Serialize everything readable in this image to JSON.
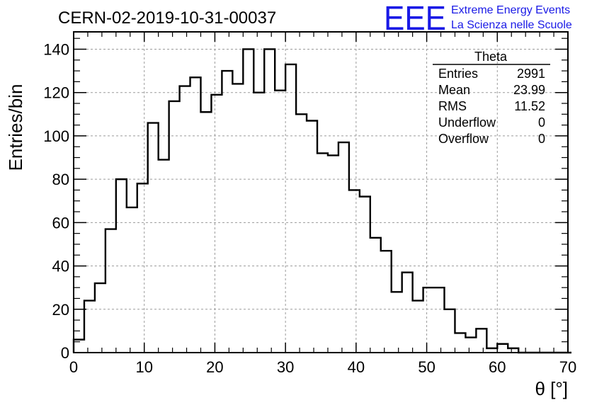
{
  "chart_data": {
    "type": "bar",
    "title": "CERN-02-2019-10-31-00037",
    "xlabel": "θ [°]",
    "ylabel": "Entries/bin",
    "xlim": [
      0,
      70
    ],
    "ylim": [
      0,
      148
    ],
    "grid": true,
    "bin_width": 1.5,
    "bin_start": 0,
    "x_ticks": [
      0,
      10,
      20,
      30,
      40,
      50,
      60,
      70
    ],
    "y_ticks": [
      0,
      20,
      40,
      60,
      80,
      100,
      120,
      140
    ],
    "values": [
      6,
      24,
      32,
      57,
      80,
      67,
      78,
      106,
      89,
      116,
      123,
      127,
      111,
      119,
      130,
      124,
      140,
      120,
      140,
      121,
      133,
      110,
      107,
      92,
      91,
      97,
      75,
      72,
      53,
      47,
      28,
      37,
      24,
      30,
      30,
      20,
      9,
      7,
      11,
      2,
      4,
      2,
      0,
      0,
      0,
      0,
      0
    ],
    "stats": {
      "name": "Theta",
      "rows": [
        {
          "label": "Entries",
          "value": "2991"
        },
        {
          "label": "Mean",
          "value": "23.99"
        },
        {
          "label": "RMS",
          "value": "11.52"
        },
        {
          "label": "Underflow",
          "value": "0"
        },
        {
          "label": "Overflow",
          "value": "0"
        }
      ]
    }
  },
  "logo": {
    "big": "EEE",
    "line1": "Extreme Energy Events",
    "line2": "La Scienza nelle Scuole",
    "color": "#1a1ae6"
  }
}
